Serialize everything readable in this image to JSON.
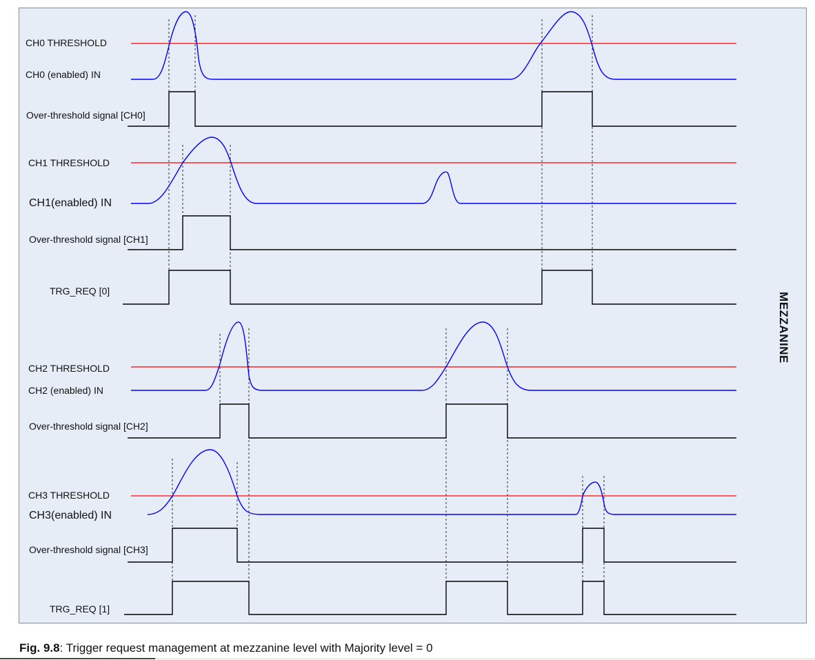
{
  "colors": {
    "threshold": "#ff0000",
    "analog": "#0000ff",
    "digital": "#000000",
    "panel": "#e6edf7"
  },
  "labels": {
    "ch0_threshold": "CH0 THRESHOLD",
    "ch0_in": "CH0 (enabled) IN",
    "ch0_ots": "Over-threshold signal [CH0]",
    "ch1_threshold": "CH1 THRESHOLD",
    "ch1_in": "CH1(enabled) IN",
    "ch1_ots": "Over-threshold signal [CH1]",
    "trg0": "TRG_REQ [0]",
    "ch2_threshold": "CH2 THRESHOLD",
    "ch2_in": "CH2 (enabled) IN",
    "ch2_ots": "Over-threshold signal [CH2]",
    "ch3_threshold": "CH3 THRESHOLD",
    "ch3_in": "CH3(enabled) IN",
    "ch3_ots": "Over-threshold signal [CH3]",
    "trg1": "TRG_REQ [1]"
  },
  "side_label": "MEZZANINE",
  "caption": {
    "prefix": "Fig. 9.8",
    "text": ": Trigger request management at mezzanine level with Majority level = 0"
  }
}
